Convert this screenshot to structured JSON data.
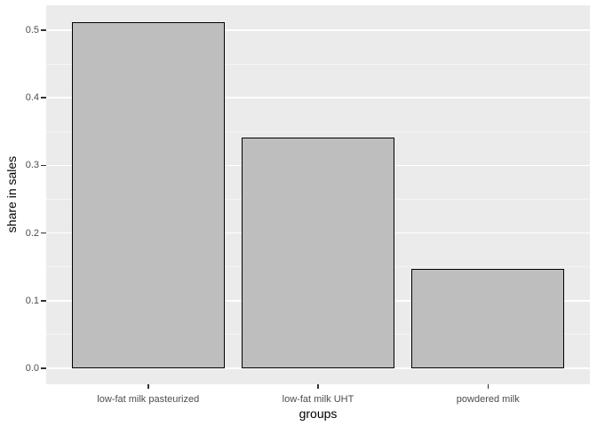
{
  "chart_data": {
    "type": "bar",
    "title": "",
    "xlabel": "groups",
    "ylabel": "share in sales",
    "categories": [
      "low-fat milk pasteurized",
      "low-fat milk UHT",
      "powdered milk"
    ],
    "values": [
      0.512,
      0.341,
      0.147
    ],
    "ylim": [
      0,
      0.537
    ],
    "y_major_ticks": [
      0.0,
      0.1,
      0.2,
      0.3,
      0.4,
      0.5
    ],
    "y_tick_labels": [
      "0.0",
      "0.1",
      "0.2",
      "0.3",
      "0.4",
      "0.5"
    ],
    "y_minor_ticks": [
      0.05,
      0.15,
      0.25,
      0.35,
      0.45
    ],
    "grid": true,
    "legend_position": "none",
    "style": "ggplot-grey-theme",
    "colors": {
      "figure_background": "#FFFFFF",
      "panel_background": "#EBEBEB",
      "major_gridline": "#FFFFFF",
      "minor_gridline": "#F5F5F5",
      "bar_fill": "#BEBEBE",
      "bar_border": "#000000",
      "tick_text": "#4D4D4D",
      "axis_title_text": "#000000",
      "tick_mark": "#333333"
    }
  }
}
